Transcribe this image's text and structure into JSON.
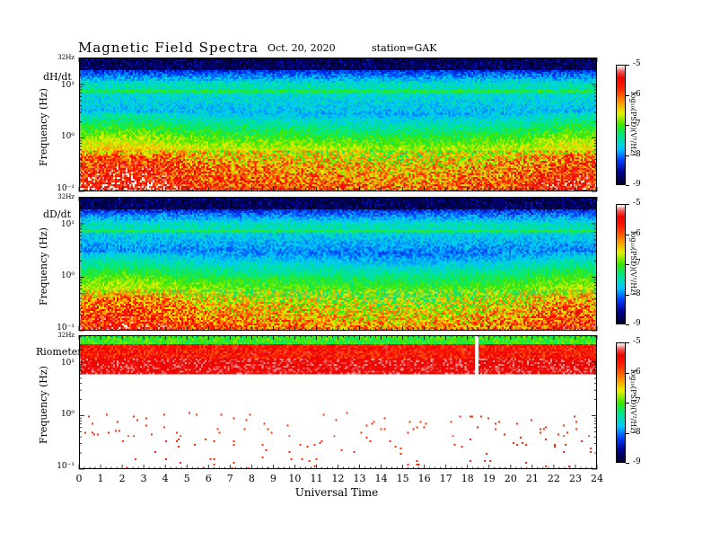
{
  "header": {
    "title": "Magnetic  Field  Spectra",
    "date": "Oct. 20, 2020",
    "station": "station=GAK"
  },
  "panels": [
    {
      "label": "dH/dt",
      "top_tick": "32Hz",
      "y_axis_label": "Frequency  (Hz)",
      "y_ticks": [
        "10¹",
        "10⁰",
        "10⁻¹"
      ]
    },
    {
      "label": "dD/dt",
      "top_tick": "32Hz",
      "y_axis_label": "Frequency  (Hz)",
      "y_ticks": [
        "10¹",
        "10⁰",
        "10⁻¹"
      ]
    },
    {
      "label": "Riometer",
      "top_tick": "32Hz",
      "y_axis_label": "Frequency  (Hz)",
      "y_ticks": [
        "10¹",
        "10⁰",
        "10⁻¹"
      ]
    }
  ],
  "colorbar": {
    "ticks": [
      "-5",
      "-6",
      "-7",
      "-8",
      "-9"
    ],
    "label": "log₁₀(PSD)(V²/Hz)"
  },
  "x_axis": {
    "title": "Universal  Time",
    "ticks": [
      "0",
      "1",
      "2",
      "3",
      "4",
      "5",
      "6",
      "7",
      "8",
      "9",
      "10",
      "11",
      "12",
      "13",
      "14",
      "15",
      "16",
      "17",
      "18",
      "19",
      "20",
      "21",
      "22",
      "23",
      "24"
    ]
  },
  "chart_data": {
    "type": "heatmap",
    "title": "Magnetic  Field  Spectra",
    "subtitle": "Oct. 20, 2020   station=GAK",
    "xlabel": "Universal  Time",
    "ylabel": "Frequency  (Hz)",
    "xlim": [
      0,
      24
    ],
    "ylim": [
      0.1,
      32
    ],
    "y_scale": "log",
    "color_scale": {
      "label": "log₁₀(PSD)(V²/Hz)",
      "range": [
        -9,
        -5
      ],
      "colormap": "rainbow (dark blue → cyan → green → yellow → red → white)"
    },
    "panels": [
      {
        "name": "dH/dt",
        "approx_log10_psd": {
          "32Hz": -9,
          "10Hz": -7.5,
          "3Hz": -7.8,
          "1Hz": -7,
          "0.3Hz": -6.2,
          "0.1Hz": -5.8
        }
      },
      {
        "name": "dD/dt",
        "approx_log10_psd": {
          "32Hz": -9,
          "10Hz": -7.5,
          "3Hz": -8,
          "1Hz": -7.2,
          "0.3Hz": -6.5,
          "0.1Hz": -6
        }
      },
      {
        "name": "Riometer",
        "approx_log10_psd": {
          "32Hz": -7.5,
          "10Hz": -5.5,
          "3Hz": -5,
          "1Hz": -5,
          "0.3Hz": -5,
          "0.1Hz": -5
        },
        "note_event_ut": 18.5
      }
    ]
  }
}
